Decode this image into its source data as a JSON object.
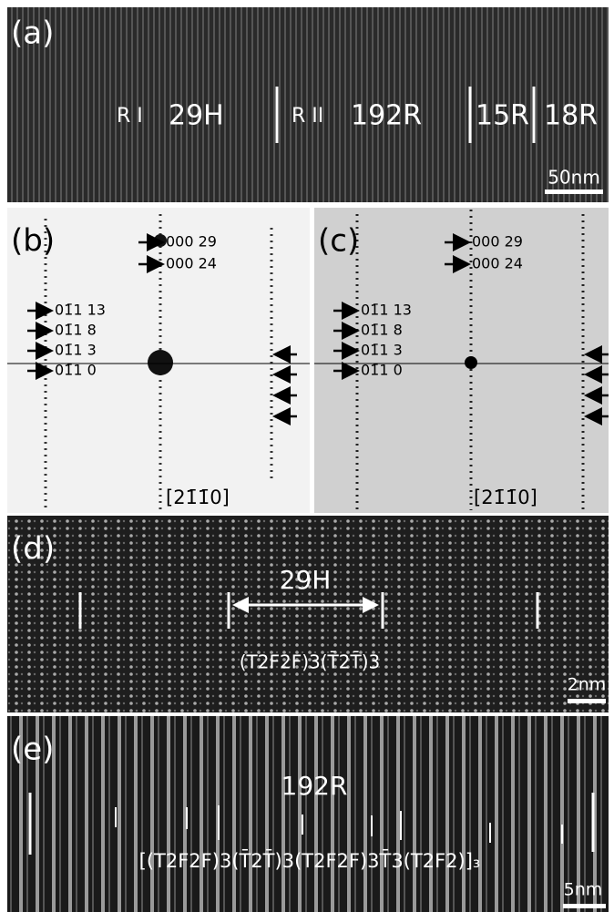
{
  "panels": {
    "a": {
      "label": "(a)",
      "regions": [
        "R I",
        "29H",
        "R II",
        "192R",
        "15R",
        "18R"
      ],
      "scale_bar": "50nm"
    },
    "b": {
      "label": "(b)",
      "spots": [
        "000 29",
        "000 24",
        "01̄1 13",
        "01̄1 8",
        "01̄1 3",
        "01̄1 0"
      ],
      "zone_axis": "[21̄1̄0]"
    },
    "c": {
      "label": "(c)",
      "spots": [
        "000 29",
        "000 24",
        "01̄1 13",
        "01̄1 8",
        "01̄1 3",
        "01̄1 0"
      ],
      "zone_axis": "[21̄1̄0]"
    },
    "d": {
      "label": "(d)",
      "period": "29H",
      "sequence": "(T2F2F)3(T̄2T̄)3",
      "scale_bar": "2nm"
    },
    "e": {
      "label": "(e)",
      "period": "192R",
      "sequence": "[(T2F2F)3(T̄2T̄)3(T2F2F)3T̄3(T2F2)]₃",
      "scale_bar": "5nm"
    }
  }
}
